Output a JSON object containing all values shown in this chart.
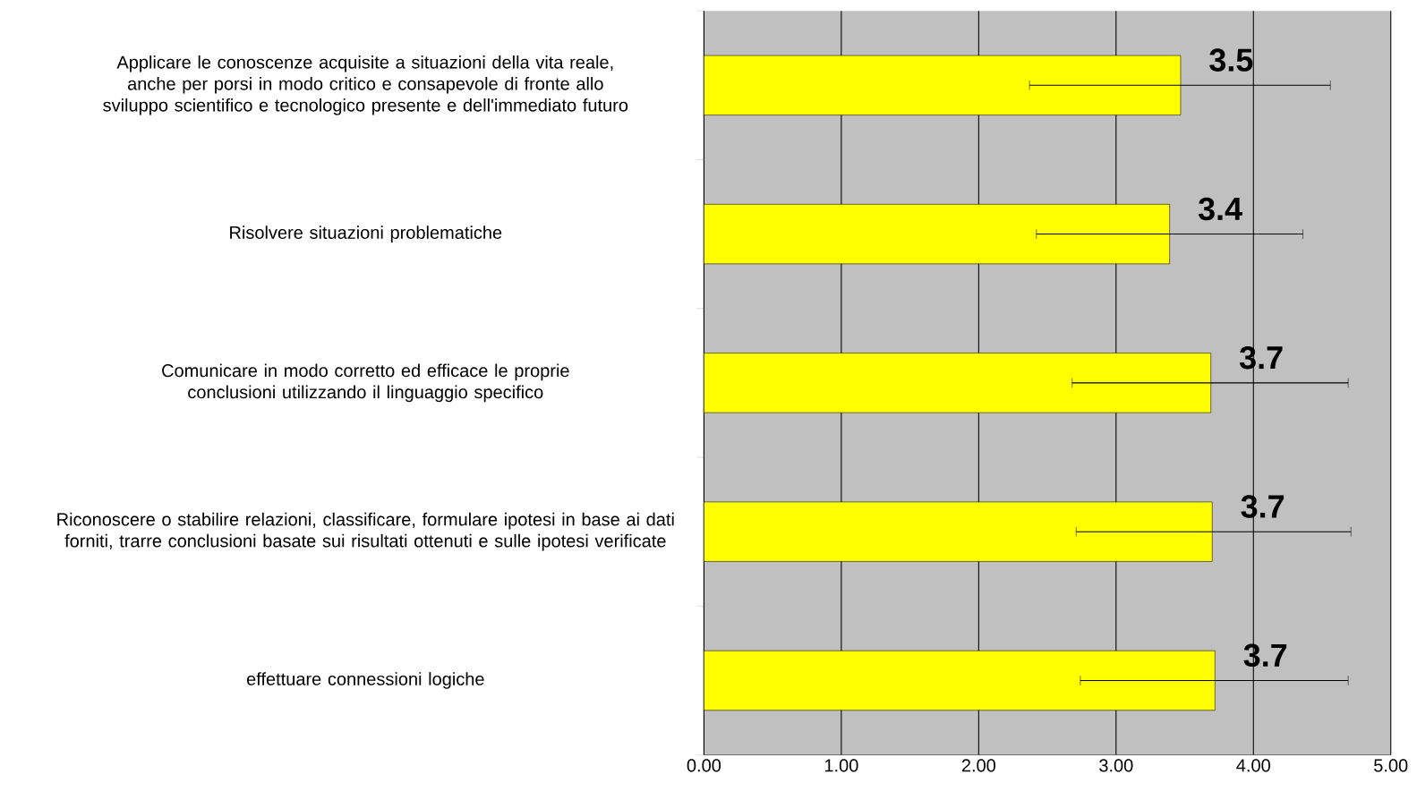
{
  "chart_data": {
    "type": "bar",
    "orientation": "horizontal",
    "categories": [
      "Applicare le conoscenze acquisite a situazioni della vita reale, anche per porsi in modo critico e consapevole di fronte allo sviluppo scientifico e tecnologico presente e dell'immediato futuro",
      "Risolvere situazioni problematiche",
      "Comunicare in modo corretto ed efficace le proprie conclusioni utilizzando il linguaggio specifico",
      "Riconoscere o stabilire relazioni, classificare, formulare ipotesi in base ai dati forniti, trarre conclusioni basate sui risultati ottenuti e sulle ipotesi verificate",
      "effettuare connessioni logiche"
    ],
    "values": [
      3.47,
      3.39,
      3.69,
      3.7,
      3.72
    ],
    "value_labels": [
      "3.5",
      "3.4",
      "3.7",
      "3.7",
      "3.7"
    ],
    "errors": [
      [
        2.37,
        4.56
      ],
      [
        2.42,
        4.36
      ],
      [
        2.68,
        4.69
      ],
      [
        2.71,
        4.71
      ],
      [
        2.74,
        4.69
      ]
    ],
    "color": "#ffff00",
    "xlim": [
      0,
      5
    ],
    "xticks": [
      {
        "value": 0,
        "label": "0.00"
      },
      {
        "value": 1,
        "label": "1.00"
      },
      {
        "value": 2,
        "label": "2.00"
      },
      {
        "value": 3,
        "label": "3.00"
      },
      {
        "value": 4,
        "label": "4.00"
      },
      {
        "value": 5,
        "label": "5.00"
      }
    ],
    "grid": "x"
  }
}
